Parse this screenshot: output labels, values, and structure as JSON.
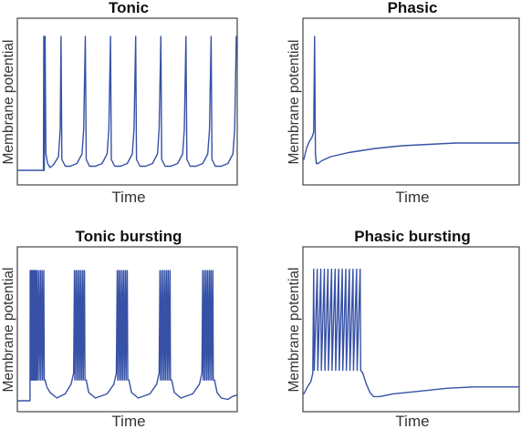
{
  "colors": {
    "trace": "#3651a6",
    "frame": "#444444"
  },
  "chart_data": [
    {
      "type": "line",
      "title": "Tonic",
      "xlabel": "Time",
      "ylabel": "Membrane potential",
      "series": [
        {
          "values": [
            [
              0,
              0
            ],
            [
              30,
              0
            ],
            [
              30.5,
              0.98
            ],
            [
              31,
              0
            ],
            [
              32,
              0.98
            ],
            [
              33,
              0.12
            ],
            [
              35,
              0.05
            ],
            [
              38,
              0.02
            ],
            [
              42,
              0.04
            ],
            [
              48,
              0.1
            ],
            [
              50,
              0.3
            ],
            [
              51,
              0.98
            ],
            [
              52,
              0.08
            ],
            [
              56,
              0.03
            ],
            [
              62,
              0.03
            ],
            [
              70,
              0.05
            ],
            [
              76,
              0.12
            ],
            [
              78,
              0.3
            ],
            [
              80,
              0.98
            ],
            [
              81,
              0.08
            ],
            [
              85,
              0.03
            ],
            [
              92,
              0.03
            ],
            [
              100,
              0.05
            ],
            [
              106,
              0.12
            ],
            [
              108,
              0.3
            ],
            [
              110,
              0.98
            ],
            [
              111,
              0.08
            ],
            [
              115,
              0.03
            ],
            [
              122,
              0.03
            ],
            [
              130,
              0.05
            ],
            [
              136,
              0.12
            ],
            [
              138,
              0.3
            ],
            [
              140,
              0.98
            ],
            [
              141,
              0.08
            ],
            [
              145,
              0.03
            ],
            [
              152,
              0.03
            ],
            [
              160,
              0.05
            ],
            [
              166,
              0.12
            ],
            [
              168,
              0.3
            ],
            [
              170,
              0.98
            ],
            [
              171,
              0.08
            ],
            [
              175,
              0.03
            ],
            [
              182,
              0.03
            ],
            [
              190,
              0.05
            ],
            [
              196,
              0.12
            ],
            [
              198,
              0.3
            ],
            [
              200,
              0.98
            ],
            [
              201,
              0.08
            ],
            [
              205,
              0.03
            ],
            [
              212,
              0.03
            ],
            [
              220,
              0.05
            ],
            [
              226,
              0.12
            ],
            [
              228,
              0.3
            ],
            [
              230,
              0.98
            ],
            [
              231,
              0.08
            ],
            [
              235,
              0.03
            ],
            [
              242,
              0.03
            ],
            [
              250,
              0.05
            ],
            [
              256,
              0.12
            ],
            [
              258,
              0.3
            ],
            [
              260,
              0.98
            ]
          ]
        }
      ]
    },
    {
      "type": "line",
      "title": "Phasic",
      "xlabel": "Time",
      "ylabel": "Membrane potential",
      "series": [
        {
          "values": [
            [
              0,
              0.08
            ],
            [
              3,
              0.16
            ],
            [
              6,
              0.21
            ],
            [
              9,
              0.24
            ],
            [
              11,
              0.28
            ],
            [
              12,
              0.98
            ],
            [
              13,
              0.12
            ],
            [
              14,
              0.05
            ],
            [
              16,
              0.05
            ],
            [
              20,
              0.07
            ],
            [
              30,
              0.1
            ],
            [
              50,
              0.13
            ],
            [
              80,
              0.16
            ],
            [
              110,
              0.18
            ],
            [
              140,
              0.19
            ],
            [
              170,
              0.2
            ],
            [
              200,
              0.2
            ],
            [
              220,
              0.2
            ],
            [
              240,
              0.2
            ]
          ]
        }
      ]
    },
    {
      "type": "line",
      "title": "Tonic bursting",
      "xlabel": "Time",
      "ylabel": "Membrane potential",
      "series": [
        {
          "values": [
            [
              0,
              0
            ],
            [
              14,
              0
            ],
            [
              14.3,
              0.94
            ],
            [
              14.6,
              0.15
            ],
            [
              15,
              0.94
            ],
            [
              15.4,
              0.15
            ],
            [
              15.8,
              0.94
            ],
            [
              16.2,
              0.15
            ],
            [
              16.6,
              0.94
            ],
            [
              17,
              0.15
            ],
            [
              17.4,
              0.94
            ],
            [
              17.8,
              0.15
            ],
            [
              18.2,
              0.94
            ],
            [
              18.6,
              0.15
            ],
            [
              19,
              0.94
            ],
            [
              19.4,
              0.15
            ],
            [
              19.8,
              0.94
            ],
            [
              20.2,
              0.15
            ],
            [
              21,
              0.94
            ],
            [
              21.6,
              0.15
            ],
            [
              22.5,
              0.94
            ],
            [
              23,
              0.15
            ],
            [
              24.5,
              0.94
            ],
            [
              25,
              0.15
            ],
            [
              26.5,
              0.94
            ],
            [
              27,
              0.15
            ],
            [
              28.5,
              0.94
            ],
            [
              29,
              0.15
            ],
            [
              30.5,
              0.94
            ],
            [
              31,
              0.15
            ],
            [
              32,
              0.15
            ],
            [
              34,
              0.1
            ],
            [
              38,
              0.06
            ],
            [
              46,
              0.02
            ],
            [
              56,
              0.05
            ],
            [
              63,
              0.12
            ],
            [
              66,
              0.2
            ],
            [
              67,
              0.94
            ],
            [
              67.5,
              0.15
            ],
            [
              69,
              0.94
            ],
            [
              69.5,
              0.15
            ],
            [
              71,
              0.94
            ],
            [
              71.5,
              0.15
            ],
            [
              73,
              0.94
            ],
            [
              73.5,
              0.15
            ],
            [
              75,
              0.94
            ],
            [
              75.5,
              0.15
            ],
            [
              77,
              0.94
            ],
            [
              77.5,
              0.15
            ],
            [
              79,
              0.94
            ],
            [
              79.5,
              0.15
            ],
            [
              81,
              0.15
            ],
            [
              84,
              0.06
            ],
            [
              92,
              0.02
            ],
            [
              106,
              0.05
            ],
            [
              114,
              0.12
            ],
            [
              117,
              0.2
            ],
            [
              118,
              0.94
            ],
            [
              118.5,
              0.15
            ],
            [
              120,
              0.94
            ],
            [
              120.5,
              0.15
            ],
            [
              122,
              0.94
            ],
            [
              122.5,
              0.15
            ],
            [
              124,
              0.94
            ],
            [
              124.5,
              0.15
            ],
            [
              126,
              0.94
            ],
            [
              126.5,
              0.15
            ],
            [
              128,
              0.94
            ],
            [
              128.5,
              0.15
            ],
            [
              130,
              0.94
            ],
            [
              130.5,
              0.15
            ],
            [
              132,
              0.15
            ],
            [
              135,
              0.06
            ],
            [
              143,
              0.02
            ],
            [
              157,
              0.05
            ],
            [
              165,
              0.12
            ],
            [
              168,
              0.2
            ],
            [
              169,
              0.94
            ],
            [
              169.5,
              0.15
            ],
            [
              171,
              0.94
            ],
            [
              171.5,
              0.15
            ],
            [
              173,
              0.94
            ],
            [
              173.5,
              0.15
            ],
            [
              175,
              0.94
            ],
            [
              175.5,
              0.15
            ],
            [
              177,
              0.94
            ],
            [
              177.5,
              0.15
            ],
            [
              179,
              0.94
            ],
            [
              179.5,
              0.15
            ],
            [
              181,
              0.94
            ],
            [
              181.5,
              0.15
            ],
            [
              183,
              0.15
            ],
            [
              186,
              0.06
            ],
            [
              194,
              0.02
            ],
            [
              208,
              0.05
            ],
            [
              216,
              0.12
            ],
            [
              219,
              0.2
            ],
            [
              220,
              0.94
            ],
            [
              220.5,
              0.15
            ],
            [
              222,
              0.94
            ],
            [
              222.5,
              0.15
            ],
            [
              224,
              0.94
            ],
            [
              224.5,
              0.15
            ],
            [
              226,
              0.94
            ],
            [
              226.5,
              0.15
            ],
            [
              228,
              0.94
            ],
            [
              228.5,
              0.15
            ],
            [
              230,
              0.94
            ],
            [
              230.5,
              0.15
            ],
            [
              232,
              0.94
            ],
            [
              232.5,
              0.15
            ],
            [
              234,
              0.15
            ],
            [
              237,
              0.06
            ],
            [
              242,
              0.02
            ],
            [
              250,
              0.01
            ],
            [
              255,
              0.03
            ],
            [
              260,
              0.04
            ]
          ]
        }
      ]
    },
    {
      "type": "line",
      "title": "Phasic bursting",
      "xlabel": "Time",
      "ylabel": "Membrane potential",
      "series": [
        {
          "values": [
            [
              0,
              0.05
            ],
            [
              4,
              0.1
            ],
            [
              8,
              0.14
            ],
            [
              10,
              0.2
            ],
            [
              11,
              0.95
            ],
            [
              11.6,
              0.22
            ],
            [
              15,
              0.95
            ],
            [
              15.6,
              0.22
            ],
            [
              19,
              0.95
            ],
            [
              19.6,
              0.22
            ],
            [
              23,
              0.95
            ],
            [
              23.6,
              0.22
            ],
            [
              27,
              0.95
            ],
            [
              27.6,
              0.22
            ],
            [
              31,
              0.95
            ],
            [
              31.6,
              0.22
            ],
            [
              35,
              0.95
            ],
            [
              35.6,
              0.22
            ],
            [
              39,
              0.95
            ],
            [
              39.6,
              0.22
            ],
            [
              43,
              0.95
            ],
            [
              43.6,
              0.22
            ],
            [
              47,
              0.95
            ],
            [
              47.6,
              0.22
            ],
            [
              51,
              0.95
            ],
            [
              51.6,
              0.22
            ],
            [
              55,
              0.95
            ],
            [
              55.6,
              0.22
            ],
            [
              59,
              0.95
            ],
            [
              59.6,
              0.22
            ],
            [
              63,
              0.95
            ],
            [
              63.6,
              0.22
            ],
            [
              66,
              0.2
            ],
            [
              70,
              0.12
            ],
            [
              74,
              0.06
            ],
            [
              78,
              0.03
            ],
            [
              85,
              0.03
            ],
            [
              100,
              0.05
            ],
            [
              130,
              0.07
            ],
            [
              160,
              0.09
            ],
            [
              190,
              0.1
            ],
            [
              220,
              0.1
            ],
            [
              240,
              0.1
            ]
          ]
        }
      ]
    }
  ]
}
